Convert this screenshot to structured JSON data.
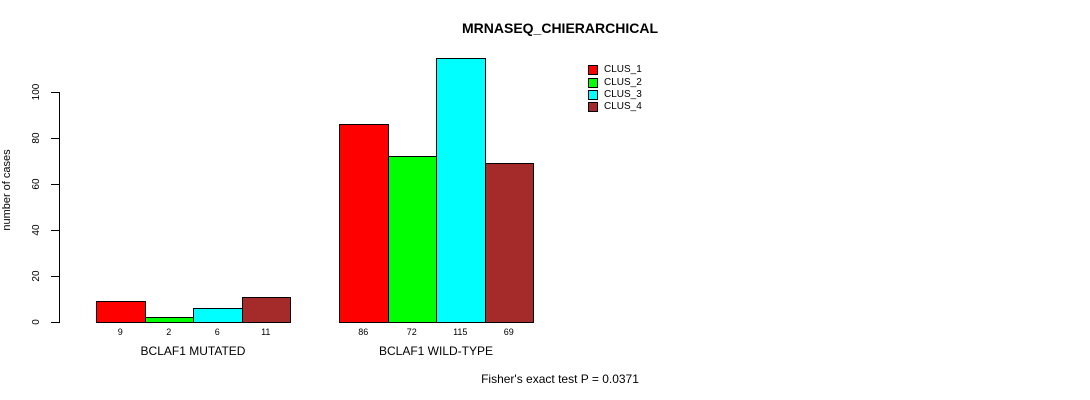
{
  "chart_data": {
    "type": "bar",
    "title": "MRNASEQ_CHIERARCHICAL",
    "ylabel": "number of cases",
    "xlabel": "",
    "ylim": [
      0,
      115
    ],
    "yticks": [
      "0",
      "20",
      "40",
      "60",
      "80",
      "100"
    ],
    "ytick_values": [
      0,
      20,
      40,
      60,
      80,
      100
    ],
    "grid": false,
    "legend_position": "top-right",
    "categories": [
      "BCLAF1 MUTATED",
      "BCLAF1 WILD-TYPE"
    ],
    "series": [
      {
        "name": "CLUS_1",
        "color": "#FF0000",
        "values": [
          9,
          86
        ]
      },
      {
        "name": "CLUS_2",
        "color": "#00FF00",
        "values": [
          2,
          72
        ]
      },
      {
        "name": "CLUS_3",
        "color": "#00FFFF",
        "values": [
          6,
          115
        ]
      },
      {
        "name": "CLUS_4",
        "color": "#A52A2A",
        "values": [
          11,
          69
        ]
      }
    ],
    "bar_value_labels": [
      [
        "9",
        "2",
        "6",
        "11"
      ],
      [
        "86",
        "72",
        "115",
        "69"
      ]
    ],
    "annotation": "Fisher's exact test P = 0.0371",
    "colors": {
      "axis": "#000000",
      "text": "#000000",
      "background": "#FFFFFF",
      "bar_border": "#000000"
    }
  }
}
